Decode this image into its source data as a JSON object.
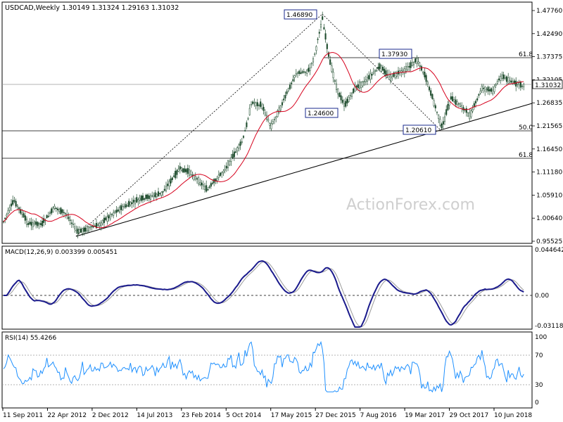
{
  "chart_data": [
    {
      "type": "candlestick",
      "symbol": "USDCAD",
      "timeframe": "Weekly",
      "header": "USDCAD,Weekly  1.30149 1.31324 1.29163 1.31032",
      "last_price_label": "1.31032",
      "ylim": [
        0.95525,
        1.5
      ]
    },
    {
      "type": "line",
      "indicator": "MACD(12,26,9) 0.003399 0.005451",
      "zero_label": "0.00",
      "ylim": [
        -0.03118,
        0.04464
      ]
    },
    {
      "type": "line",
      "indicator": "RSI(14) 55.4266",
      "ylim": [
        0,
        100
      ]
    }
  ],
  "price_ticks": [
    "1.47760",
    "1.42490",
    "1.37375",
    "1.32105",
    "1.26835",
    "1.21565",
    "1.16450",
    "1.11180",
    "1.05910",
    "1.00640",
    "0.95525"
  ],
  "macd_ticks": [
    "0.044642",
    "0.00",
    "-0.031183"
  ],
  "rsi_ticks": [
    "100",
    "70",
    "30",
    "0"
  ],
  "x_labels": [
    "11 Sep 2011",
    "22 Apr 2012",
    "2 Dec 2012",
    "14 Jul 2013",
    "23 Feb 2014",
    "5 Oct 2014",
    "17 May 2015",
    "27 Dec 2015",
    "7 Aug 2016",
    "19 Mar 2017",
    "29 Oct 2017",
    "10 Jun 2018"
  ],
  "annotations": [
    "1.46890",
    "1.37930",
    "1.24600",
    "1.20610"
  ],
  "fib_levels": [
    "61.8",
    "50.0",
    "61.8"
  ],
  "watermark": "ActionForex.com"
}
